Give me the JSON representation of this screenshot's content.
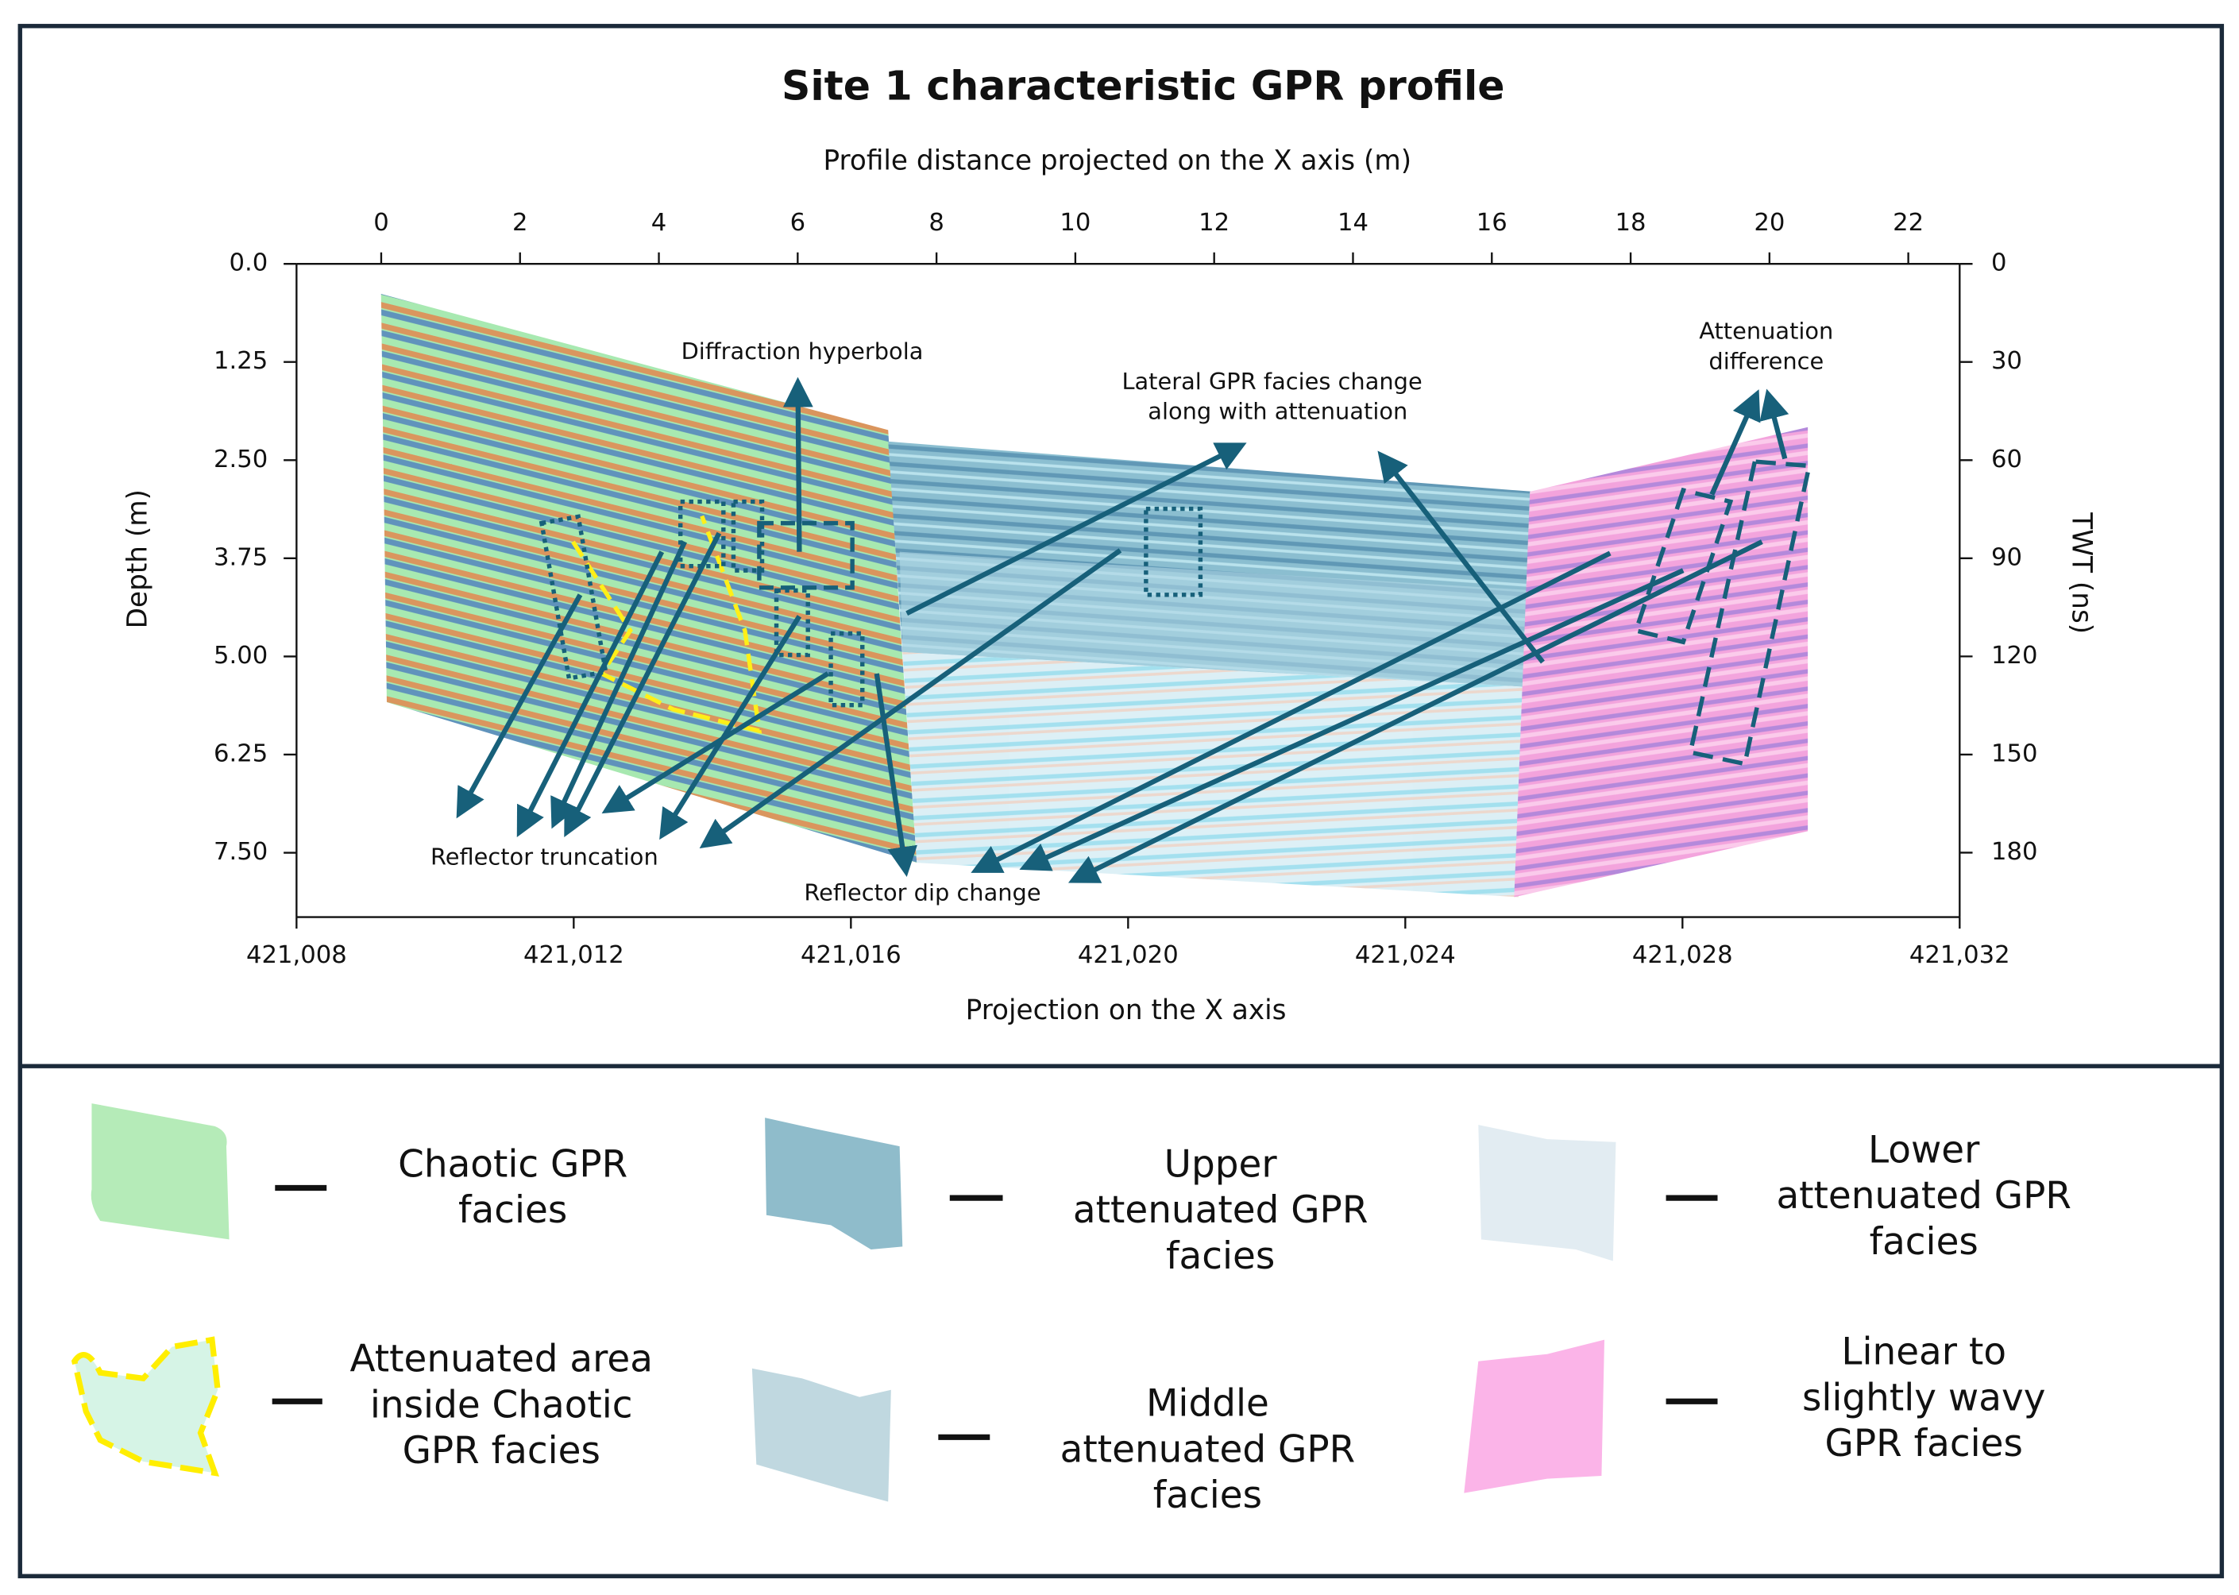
{
  "chart_data": {
    "type": "gpr-profile",
    "title": "Site 1 characteristic GPR profile",
    "x2label": "Profile distance projected on the X axis (m)",
    "x2lim": [
      -1.22,
      22.74
    ],
    "x2ticks": [
      0,
      2,
      4,
      6,
      8,
      10,
      12,
      14,
      16,
      18,
      20,
      22
    ],
    "xlabel": "Projection on the X axis",
    "xlim": [
      421008,
      421032
    ],
    "xticks": [
      {
        "value": 421008,
        "label": "421,008"
      },
      {
        "value": 421012,
        "label": "421,012"
      },
      {
        "value": 421016,
        "label": "421,016"
      },
      {
        "value": 421020,
        "label": "421,020"
      },
      {
        "value": 421024,
        "label": "421,024"
      },
      {
        "value": 421028,
        "label": "421,028"
      },
      {
        "value": 421032,
        "label": "421,032"
      }
    ],
    "ylabel": "Depth (m)",
    "ylim": [
      0,
      8.32
    ],
    "yticks": [
      {
        "value": 0,
        "label": "0.0"
      },
      1.25,
      {
        "value": 2.5,
        "label": "2.50"
      },
      3.75,
      {
        "value": 5,
        "label": "5.00"
      },
      6.25,
      {
        "value": 7.5,
        "label": "7.50"
      }
    ],
    "y2label": "TWT (ns)",
    "y2lim": [
      0,
      199.7
    ],
    "y2ticks": [
      0,
      30,
      60,
      90,
      120,
      150,
      180
    ],
    "annotations": [
      {
        "lines": [
          "Diffraction hyperbola"
        ]
      },
      {
        "lines": [
          "Lateral GPR facies change",
          "along with attenuation"
        ]
      },
      {
        "lines": [
          "Attenuation",
          "difference"
        ]
      },
      {
        "lines": [
          "Reflector truncation"
        ]
      },
      {
        "lines": [
          "Reflector dip change"
        ]
      }
    ],
    "legend": [
      {
        "lines": [
          "Chaotic GPR",
          "facies"
        ],
        "color": "#b5ebb8"
      },
      {
        "lines": [
          "Upper",
          "attenuated GPR",
          "facies"
        ],
        "color": "#8fbccb"
      },
      {
        "lines": [
          "Lower",
          "attenuated GPR",
          "facies"
        ],
        "color": "#e2ecf2"
      },
      {
        "lines": [
          "Attenuated area",
          "inside Chaotic",
          "GPR facies"
        ],
        "color": "#d6f4e6"
      },
      {
        "lines": [
          "Middle",
          "attenuated GPR",
          "facies"
        ],
        "color": "#c0d8e0"
      },
      {
        "lines": [
          "Linear to",
          "slightly wavy",
          "GPR facies"
        ],
        "color": "#fbb4e8"
      }
    ]
  }
}
